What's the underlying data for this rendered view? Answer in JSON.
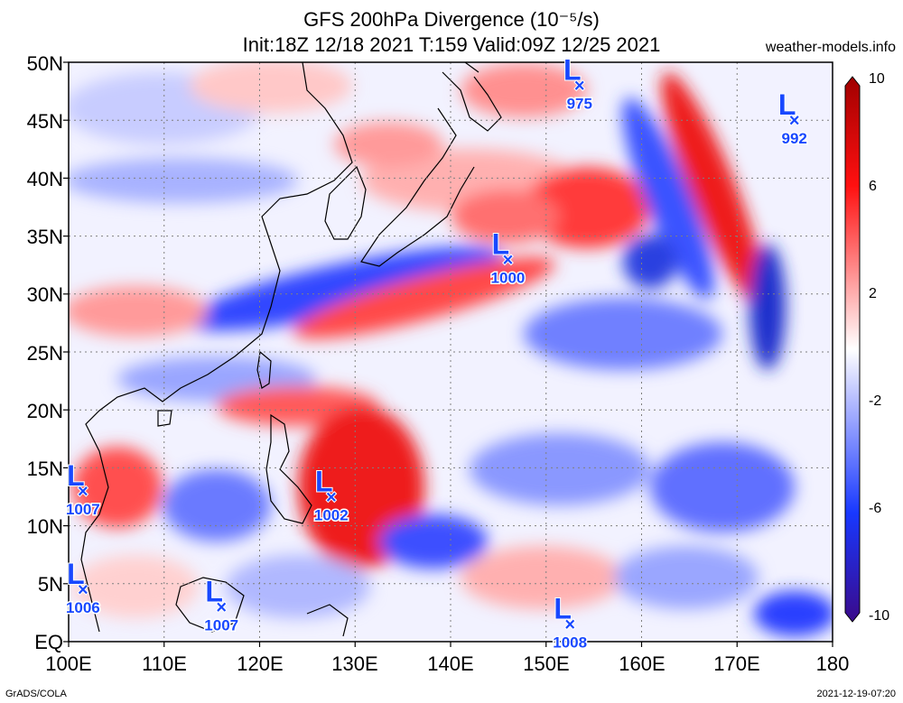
{
  "title": {
    "line1": "GFS 200hPa Divergence (10⁻⁵/s)",
    "line2": "Init:18Z 12/18 2021 T:159 Valid:09Z 12/25 2021"
  },
  "credit": "weather-models.info",
  "footer": {
    "left": "GrADS/COLA",
    "right": "2021-12-19-07:20"
  },
  "axes": {
    "lat_labels": [
      "50N",
      "45N",
      "40N",
      "35N",
      "30N",
      "25N",
      "20N",
      "15N",
      "10N",
      "5N",
      "EQ"
    ],
    "lon_labels": [
      "100E",
      "110E",
      "120E",
      "130E",
      "140E",
      "150E",
      "160E",
      "170E",
      "180"
    ],
    "lat_range": [
      0,
      50
    ],
    "lon_range": [
      100,
      180
    ]
  },
  "colorbar": {
    "labels": [
      "10",
      "6",
      "2",
      "-2",
      "-6",
      "-10"
    ],
    "colors": {
      "max": "#a00000",
      "pos": "#ff2020",
      "neutral": "#ffffff",
      "neg": "#2040ff",
      "min": "#3a0a8a"
    }
  },
  "colors": {
    "L_marker": "#1848ff",
    "coast": "#000000",
    "grid": "#808080"
  },
  "lows": [
    {
      "label": "L",
      "pressure": "975",
      "lon": 153.5,
      "lat": 48.0
    },
    {
      "label": "L",
      "pressure": "992",
      "lon": 176.0,
      "lat": 45.0
    },
    {
      "label": "L",
      "pressure": "1000",
      "lon": 146.0,
      "lat": 33.0
    },
    {
      "label": "L",
      "pressure": "1007",
      "lon": 101.5,
      "lat": 13.0
    },
    {
      "label": "L",
      "pressure": "1002",
      "lon": 127.5,
      "lat": 12.5
    },
    {
      "label": "L",
      "pressure": "1006",
      "lon": 101.5,
      "lat": 4.5
    },
    {
      "label": "L",
      "pressure": "1007",
      "lon": 116.0,
      "lat": 3.0
    },
    {
      "label": "L",
      "pressure": "1008",
      "lon": 152.5,
      "lat": 1.5
    }
  ]
}
